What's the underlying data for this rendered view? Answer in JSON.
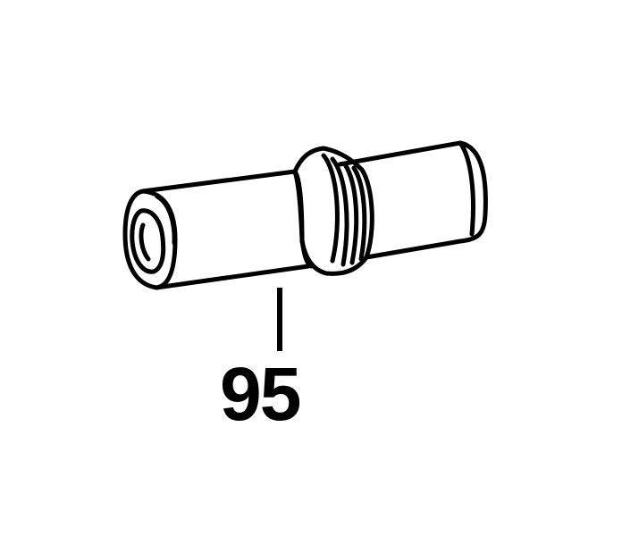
{
  "diagram": {
    "part_number": "95",
    "line_color": "#000000",
    "background_color": "#ffffff"
  }
}
